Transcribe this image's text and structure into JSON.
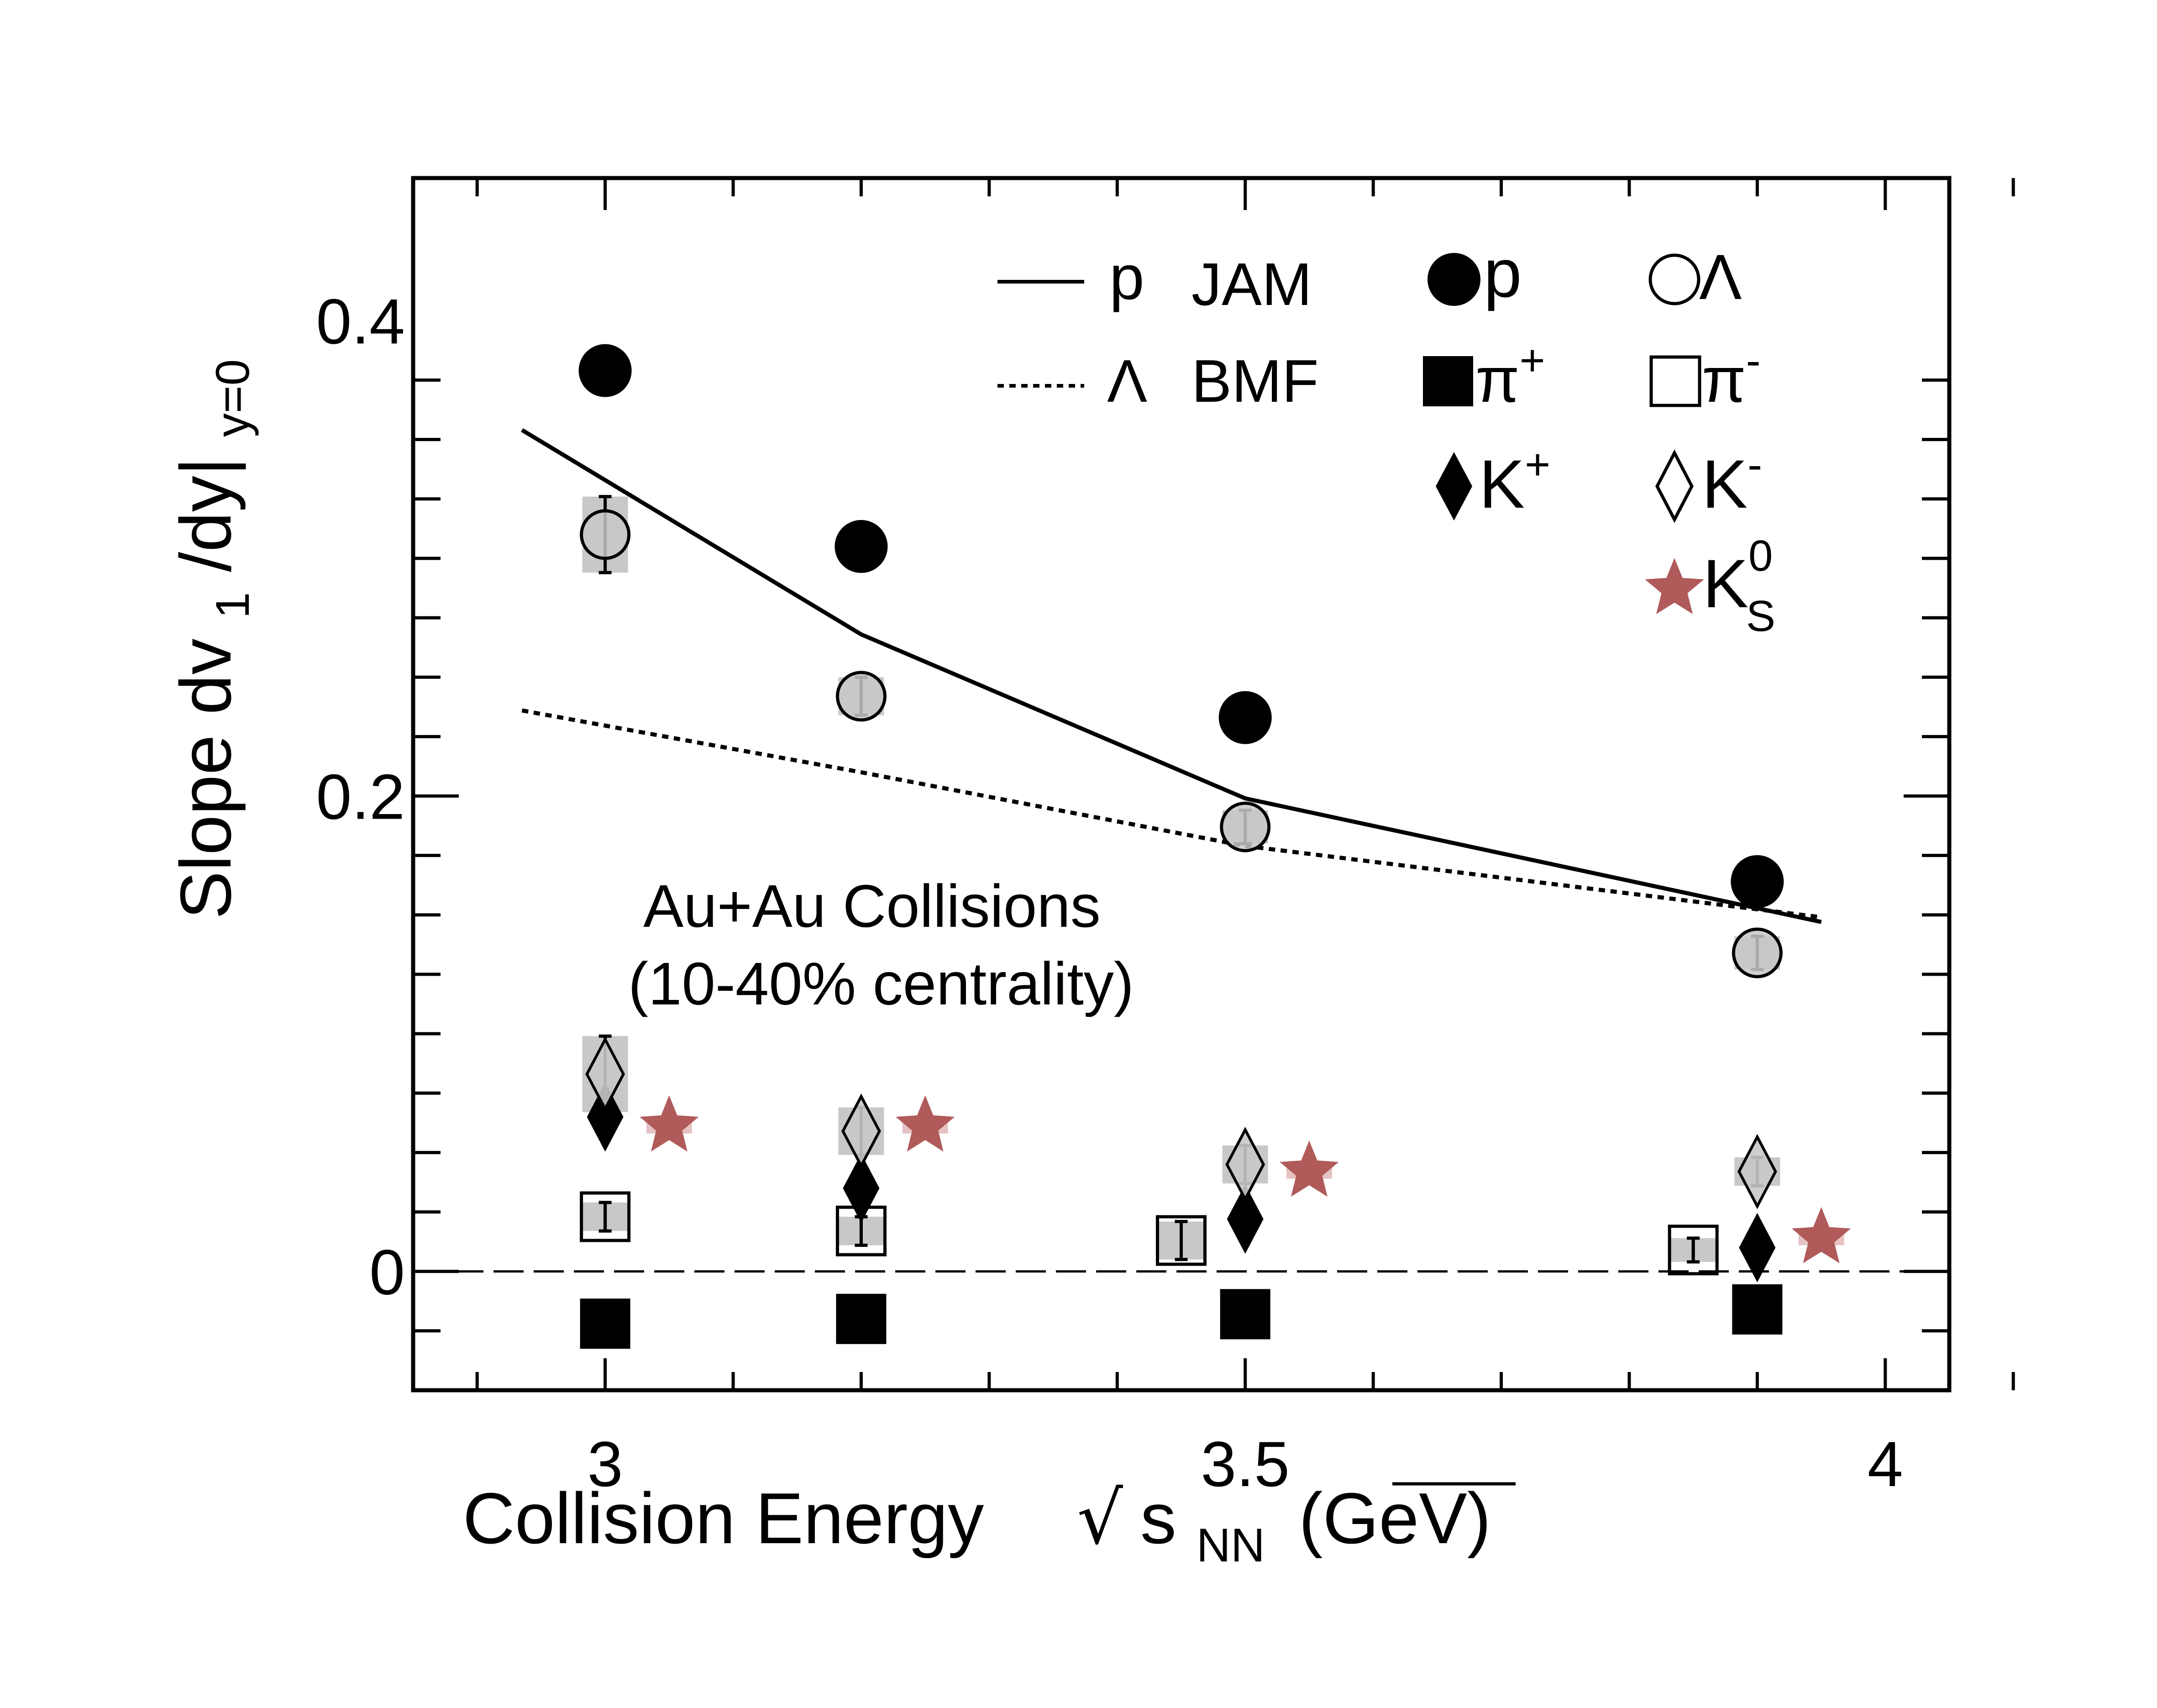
{
  "chart_data": {
    "type": "scatter",
    "xlim": [
      2.85,
      4.05
    ],
    "ylim": [
      -0.05,
      0.46
    ],
    "x_ticks": [
      {
        "value": 3,
        "label": "3"
      },
      {
        "value": 3.5,
        "label": "3.5"
      },
      {
        "value": 4,
        "label": "4"
      }
    ],
    "y_ticks": [
      {
        "value": 0,
        "label": "0"
      },
      {
        "value": 0.2,
        "label": "0.2"
      },
      {
        "value": 0.4,
        "label": "0.4"
      }
    ],
    "xlabel": {
      "main": "Collision Energy",
      "sqrt": "√",
      "s": "s",
      "sub": "NN",
      "unit": "(GeV)"
    },
    "ylabel": {
      "main": "Slope dv",
      "sub1": "1",
      "mid": "/dy|",
      "sub2": "y=0"
    },
    "annotation": [
      "Au+Au Collisions",
      "(10-40% centrality)"
    ],
    "zero_line": "dashed",
    "legend_placement": "top-right",
    "model_legend": [
      {
        "line": "solid",
        "particle": "p",
        "model": "JAM"
      },
      {
        "line": "dotted",
        "particle": "Λ",
        "model": "BMF"
      }
    ],
    "series": [
      {
        "name": "p",
        "marker": "circle",
        "fill": "#000000",
        "points": [
          {
            "x": 3.0,
            "y": 0.379
          },
          {
            "x": 3.2,
            "y": 0.305
          },
          {
            "x": 3.5,
            "y": 0.233
          },
          {
            "x": 3.9,
            "y": 0.164
          }
        ],
        "err": [
          0.004,
          0.004,
          0.004,
          0.004
        ]
      },
      {
        "name": "Λ",
        "marker": "circle",
        "fill": "#c8c8c8",
        "points": [
          {
            "x": 3.0,
            "y": 0.31
          },
          {
            "x": 3.2,
            "y": 0.242
          },
          {
            "x": 3.5,
            "y": 0.187
          },
          {
            "x": 3.9,
            "y": 0.134
          }
        ],
        "err": [
          0.016,
          0.008,
          0.007,
          0.007
        ]
      },
      {
        "name": "π+",
        "marker": "square",
        "fill": "#000000",
        "points": [
          {
            "x": 3.0,
            "y": -0.022
          },
          {
            "x": 3.2,
            "y": -0.02
          },
          {
            "x": 3.5,
            "y": -0.018
          },
          {
            "x": 3.9,
            "y": -0.016
          }
        ],
        "err": [
          0.002,
          0.002,
          0.002,
          0.002
        ]
      },
      {
        "name": "π-",
        "marker": "square",
        "fill": "#ffffff",
        "points": [
          {
            "x": 3.0,
            "y": 0.023
          },
          {
            "x": 3.2,
            "y": 0.017
          },
          {
            "x": 3.45,
            "y": 0.013
          },
          {
            "x": 3.85,
            "y": 0.009
          }
        ],
        "err": [
          0.006,
          0.006,
          0.008,
          0.005
        ]
      },
      {
        "name": "K+",
        "marker": "diamond",
        "fill": "#000000",
        "points": [
          {
            "x": 3.0,
            "y": 0.065
          },
          {
            "x": 3.2,
            "y": 0.035
          },
          {
            "x": 3.5,
            "y": 0.022
          },
          {
            "x": 3.9,
            "y": 0.01
          }
        ],
        "err": [
          0.004,
          0.005,
          0.006,
          0.004
        ]
      },
      {
        "name": "K-",
        "marker": "diamond",
        "fill": "#c8c8c8",
        "points": [
          {
            "x": 3.0,
            "y": 0.083
          },
          {
            "x": 3.2,
            "y": 0.059
          },
          {
            "x": 3.5,
            "y": 0.045
          },
          {
            "x": 3.9,
            "y": 0.042
          }
        ],
        "err": [
          0.016,
          0.01,
          0.008,
          0.006
        ]
      },
      {
        "name": "K0S",
        "marker": "star",
        "fill": "#b05a5a",
        "points": [
          {
            "x": 3.05,
            "y": 0.061
          },
          {
            "x": 3.25,
            "y": 0.061
          },
          {
            "x": 3.55,
            "y": 0.042
          },
          {
            "x": 3.95,
            "y": 0.014
          }
        ],
        "err": [
          0.003,
          0.003,
          0.003,
          0.003
        ]
      }
    ],
    "model_lines": [
      {
        "model": "JAM",
        "particle": "p",
        "style": "solid",
        "x": [
          2.935,
          3.2,
          3.5,
          3.95
        ],
        "y": [
          0.354,
          0.268,
          0.199,
          0.147
        ]
      },
      {
        "model": "BMF",
        "particle": "Λ",
        "style": "dotted",
        "x": [
          2.935,
          3.2,
          3.5,
          3.95
        ],
        "y": [
          0.236,
          0.21,
          0.179,
          0.149
        ]
      }
    ],
    "marker_legend": [
      {
        "series": "p",
        "label": "p"
      },
      {
        "series": "Λ",
        "label": "Λ"
      },
      {
        "series": "π+",
        "label": "π",
        "sup": "+"
      },
      {
        "series": "π-",
        "label": "π",
        "sup": "-"
      },
      {
        "series": "K+",
        "label": "K",
        "sup": "+"
      },
      {
        "series": "K-",
        "label": "K",
        "sup": "-"
      },
      {
        "series": "K0S",
        "label": "K",
        "sup": "0",
        "sub": "S"
      }
    ],
    "colors": {
      "frame": "#000000",
      "k0s": "#b05a5a",
      "open_fill": "#c8c8c8",
      "syst_box": "#c8c8c8"
    }
  }
}
